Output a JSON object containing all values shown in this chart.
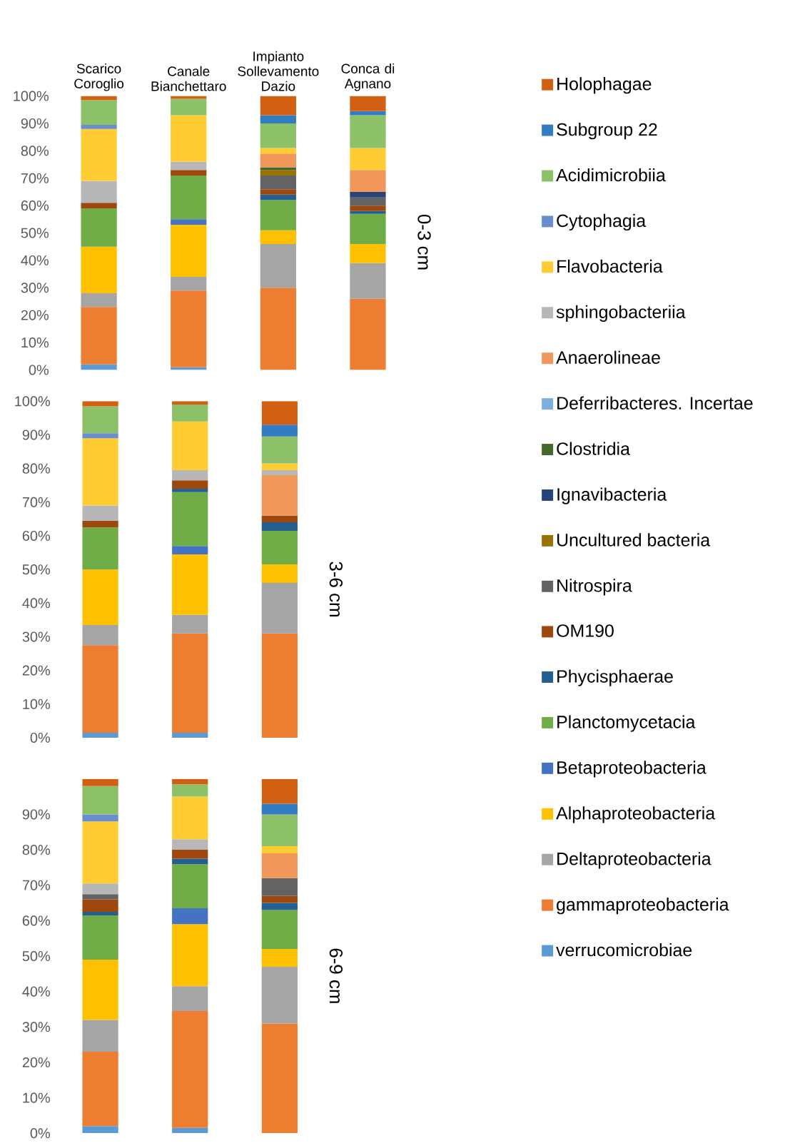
{
  "chart_data": [
    {
      "type": "bar",
      "stacked": true,
      "title": "0-3 cm",
      "categories": [
        "Scarico Coroglio",
        "Canale Bianchettaro",
        "Impianto Sollevamento Dazio",
        "Conca di Agnano"
      ],
      "ylim": [
        0,
        100
      ],
      "yticks": [
        {
          "value": 0,
          "label": "0%"
        },
        {
          "value": 10,
          "label": "10%"
        },
        {
          "value": 20,
          "label": "20%"
        },
        {
          "value": 30,
          "label": "30%"
        },
        {
          "value": 40,
          "label": "40%"
        },
        {
          "value": 50,
          "label": "50%"
        },
        {
          "value": 60,
          "label": "60%"
        },
        {
          "value": 70,
          "label": "70%"
        },
        {
          "value": 80,
          "label": "80%"
        },
        {
          "value": 90,
          "label": "90%"
        },
        {
          "value": 100,
          "label": "100%"
        }
      ],
      "legend": "right",
      "series": [
        {
          "name": "verrucomicrobiae",
          "color": "#5b9bd5",
          "values": [
            2,
            1,
            null,
            null
          ]
        },
        {
          "name": "gammaproteobacteria",
          "color": "#ed7d31",
          "values": [
            21,
            28,
            30,
            26
          ]
        },
        {
          "name": "Deltaproteobacteria",
          "color": "#a5a5a5",
          "values": [
            5,
            5,
            16,
            13
          ]
        },
        {
          "name": "Alphaproteobacteria",
          "color": "#ffc000",
          "values": [
            17,
            19,
            5,
            7
          ]
        },
        {
          "name": "Betaproteobacteria",
          "color": "#4472c4",
          "values": [
            null,
            2,
            null,
            null
          ]
        },
        {
          "name": "Planctomycetacia",
          "color": "#70ad47",
          "values": [
            14,
            16,
            11,
            11
          ]
        },
        {
          "name": "Phycisphaerae",
          "color": "#255e91",
          "values": [
            null,
            null,
            2,
            1
          ]
        },
        {
          "name": "OM190",
          "color": "#9e480e",
          "values": [
            2,
            2,
            2,
            2
          ]
        },
        {
          "name": "Nitrospira",
          "color": "#636363",
          "values": [
            null,
            null,
            5,
            3
          ]
        },
        {
          "name": "Uncultured bacteria",
          "color": "#997300",
          "values": [
            null,
            null,
            2,
            null
          ]
        },
        {
          "name": "Ignavibacteria",
          "color": "#264478",
          "values": [
            null,
            null,
            null,
            2
          ]
        },
        {
          "name": "Clostridia",
          "color": "#43682b",
          "values": [
            null,
            null,
            1,
            null
          ]
        },
        {
          "name": "Deferribacteres. Incertae",
          "color": "#7cafdd",
          "values": [
            null,
            null,
            null,
            null
          ]
        },
        {
          "name": "Anaerolineae",
          "color": "#f1975a",
          "values": [
            null,
            null,
            5,
            8
          ]
        },
        {
          "name": "sphingobacteriia",
          "color": "#b7b7b7",
          "values": [
            8,
            3,
            null,
            null
          ]
        },
        {
          "name": "Flavobacteria",
          "color": "#ffcd33",
          "values": [
            19,
            17,
            2,
            8
          ]
        },
        {
          "name": "Cytophagia",
          "color": "#698ed0",
          "values": [
            1.5,
            null,
            null,
            null
          ]
        },
        {
          "name": "Acidimicrobiia",
          "color": "#8cc168",
          "values": [
            9,
            6,
            9,
            12
          ]
        },
        {
          "name": "Subgroup 22",
          "color": "#327dc2",
          "values": [
            null,
            null,
            3,
            1.5
          ]
        },
        {
          "name": "Holophagae",
          "color": "#d26012",
          "values": [
            1.5,
            1,
            7,
            5.5
          ]
        }
      ]
    },
    {
      "type": "bar",
      "stacked": true,
      "title": "3-6 cm",
      "categories": [
        null,
        null,
        null
      ],
      "tick_labels": "y",
      "ylim": [
        0,
        100
      ],
      "yticks": [
        {
          "value": 0,
          "label": "0%"
        },
        {
          "value": 10,
          "label": "10%"
        },
        {
          "value": 20,
          "label": "20%"
        },
        {
          "value": 30,
          "label": "30%"
        },
        {
          "value": 40,
          "label": "40%"
        },
        {
          "value": 50,
          "label": "50%"
        },
        {
          "value": 60,
          "label": "60%"
        },
        {
          "value": 70,
          "label": "70%"
        },
        {
          "value": 80,
          "label": "80%"
        },
        {
          "value": 90,
          "label": "90%"
        },
        {
          "value": 100,
          "label": "100%"
        }
      ],
      "series": [
        {
          "color": "#5b9bd5",
          "values": [
            1.5,
            1.5,
            null
          ]
        },
        {
          "color": "#ed7d31",
          "values": [
            26,
            29.5,
            31
          ]
        },
        {
          "color": "#a5a5a5",
          "values": [
            6,
            5.5,
            15
          ]
        },
        {
          "color": "#ffc000",
          "values": [
            16.5,
            18,
            5.5
          ]
        },
        {
          "color": "#4472c4",
          "values": [
            null,
            2.5,
            null
          ]
        },
        {
          "color": "#70ad47",
          "values": [
            12.5,
            16,
            10
          ]
        },
        {
          "color": "#255e91",
          "values": [
            null,
            1,
            2.5
          ]
        },
        {
          "color": "#9e480e",
          "values": [
            2,
            2.5,
            2
          ]
        },
        {
          "color": "#f1975a",
          "values": [
            null,
            null,
            12
          ]
        },
        {
          "color": "#b7b7b7",
          "values": [
            4.5,
            3,
            1.5
          ]
        },
        {
          "color": "#ffcd33",
          "values": [
            20,
            14.5,
            2
          ]
        },
        {
          "color": "#698ed0",
          "values": [
            1.5,
            null,
            null
          ]
        },
        {
          "color": "#8cc168",
          "values": [
            8,
            5,
            8
          ]
        },
        {
          "color": "#327dc2",
          "values": [
            null,
            null,
            3.5
          ]
        },
        {
          "color": "#d26012",
          "values": [
            1.5,
            1,
            7
          ]
        }
      ]
    },
    {
      "type": "bar",
      "stacked": true,
      "title": "6-9 cm",
      "categories": [
        null,
        null,
        null
      ],
      "tick_labels": "y",
      "ylim": [
        0,
        100
      ],
      "yticks": [
        {
          "value": 0,
          "label": "0%"
        },
        {
          "value": 10,
          "label": "10%"
        },
        {
          "value": 20,
          "label": "20%"
        },
        {
          "value": 30,
          "label": "30%"
        },
        {
          "value": 40,
          "label": "40%"
        },
        {
          "value": 50,
          "label": "50%"
        },
        {
          "value": 60,
          "label": "60%"
        },
        {
          "value": 70,
          "label": "70%"
        },
        {
          "value": 80,
          "label": "80%"
        },
        {
          "value": 90,
          "label": "90%"
        }
      ],
      "series": [
        {
          "color": "#5b9bd5",
          "values": [
            2,
            1.5,
            null
          ]
        },
        {
          "color": "#ed7d31",
          "values": [
            21,
            33,
            31
          ]
        },
        {
          "color": "#a5a5a5",
          "values": [
            9,
            7,
            16
          ]
        },
        {
          "color": "#ffc000",
          "values": [
            17,
            17.5,
            5
          ]
        },
        {
          "color": "#4472c4",
          "values": [
            null,
            4.5,
            null
          ]
        },
        {
          "color": "#70ad47",
          "values": [
            12.5,
            12.5,
            11
          ]
        },
        {
          "color": "#255e91",
          "values": [
            1,
            1.5,
            2
          ]
        },
        {
          "color": "#9e480e",
          "values": [
            3.5,
            2.5,
            2
          ]
        },
        {
          "color": "#636363",
          "values": [
            1.5,
            null,
            5
          ]
        },
        {
          "color": "#f1975a",
          "values": [
            null,
            null,
            7
          ]
        },
        {
          "color": "#b7b7b7",
          "values": [
            3,
            3,
            null
          ]
        },
        {
          "color": "#ffcd33",
          "values": [
            17.5,
            12,
            2
          ]
        },
        {
          "color": "#698ed0",
          "values": [
            2,
            null,
            null
          ]
        },
        {
          "color": "#8cc168",
          "values": [
            8,
            3.5,
            9
          ]
        },
        {
          "color": "#327dc2",
          "values": [
            null,
            null,
            3
          ]
        },
        {
          "color": "#d26012",
          "values": [
            2,
            1.5,
            7
          ]
        }
      ]
    }
  ]
}
